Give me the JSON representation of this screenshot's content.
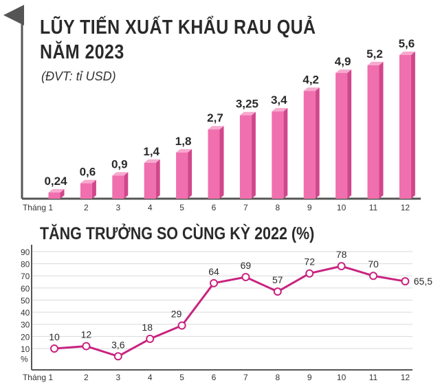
{
  "chart_data": [
    {
      "type": "bar",
      "title": "LŨY TIẾN XUẤT KHẨU RAU QUẢ",
      "subtitle": "NĂM 2023",
      "unit_label": "(ĐVT: tỉ USD)",
      "categories": [
        "Tháng 1",
        "2",
        "3",
        "4",
        "5",
        "6",
        "7",
        "8",
        "9",
        "10",
        "11",
        "12"
      ],
      "value_labels": [
        "0,24",
        "0,6",
        "0,9",
        "1,4",
        "1,8",
        "2,7",
        "3,25",
        "3,4",
        "4,2",
        "4,9",
        "5,2",
        "5,6"
      ],
      "values": [
        0.24,
        0.6,
        0.9,
        1.4,
        1.8,
        2.7,
        3.25,
        3.4,
        4.2,
        4.9,
        5.2,
        5.6
      ],
      "ylim": [
        0,
        5.6
      ],
      "grid": false,
      "colors": {
        "bar_front": "#f06fae",
        "bar_side": "#d1478b",
        "bar_top": "#f7a9cf"
      }
    },
    {
      "type": "line",
      "title": "TĂNG TRƯỞNG SO CÙNG KỲ 2022 (%)",
      "categories": [
        "Tháng 1",
        "2",
        "3",
        "4",
        "5",
        "6",
        "7",
        "8",
        "9",
        "10",
        "11",
        "12"
      ],
      "value_labels": [
        "10",
        "12",
        "3,6",
        "18",
        "29",
        "64",
        "69",
        "57",
        "72",
        "78",
        "70",
        "65,5"
      ],
      "values": [
        10,
        12,
        3.6,
        18,
        29,
        64,
        69,
        57,
        72,
        78,
        70,
        65.5
      ],
      "y_ticks": [
        "90",
        "80",
        "70",
        "60",
        "50",
        "40",
        "30",
        "20",
        "10",
        "%"
      ],
      "ylim": [
        0,
        90
      ],
      "grid": true,
      "colors": {
        "line": "#c8237f",
        "marker_fill": "#ffffff",
        "grid": "#d9d9d9"
      }
    }
  ]
}
